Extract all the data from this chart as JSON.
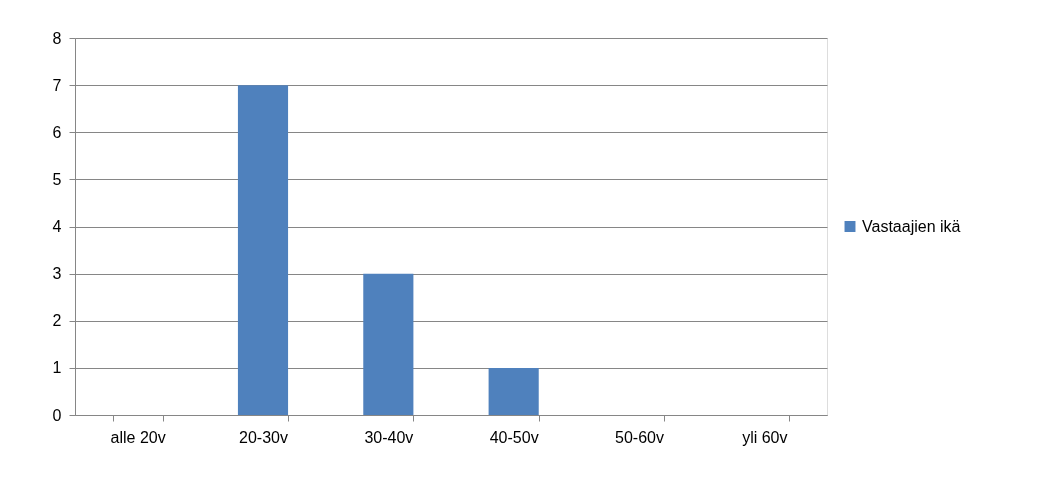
{
  "chart_data": {
    "type": "bar",
    "categories": [
      "alle 20v",
      "20-30v",
      "30-40v",
      "40-50v",
      "50-60v",
      "yli 60v"
    ],
    "series": [
      {
        "name": "Vastaajien ikä",
        "color": "#4f81bd",
        "values": [
          0,
          7,
          3,
          1,
          0,
          0
        ]
      }
    ],
    "ylim": [
      0,
      8
    ],
    "yticks": [
      0,
      1,
      2,
      3,
      4,
      5,
      6,
      7,
      8
    ],
    "grid": "y",
    "legend": "right"
  }
}
